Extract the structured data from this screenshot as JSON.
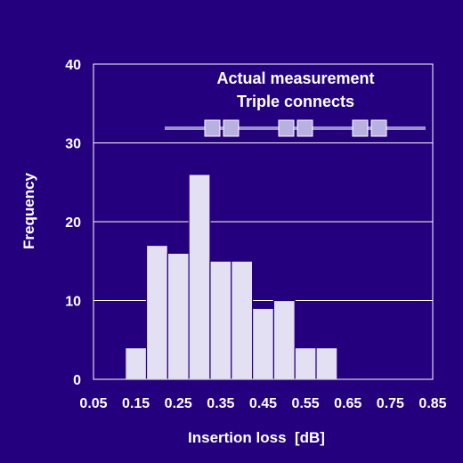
{
  "chart_data": {
    "type": "bar",
    "title": "",
    "xlabel": "Insertion loss  [dB]",
    "ylabel": "Frequency",
    "bin_width": 0.05,
    "bin_starts": [
      0.125,
      0.175,
      0.225,
      0.275,
      0.325,
      0.375,
      0.425,
      0.475,
      0.525,
      0.575
    ],
    "values": [
      4,
      17,
      16,
      26,
      15,
      15,
      9,
      10,
      4,
      4
    ],
    "xlim": [
      0.05,
      0.85
    ],
    "ylim": [
      0,
      40
    ],
    "x_ticks": [
      "0.05",
      "0.15",
      "0.25",
      "0.35",
      "0.45",
      "0.55",
      "0.65",
      "0.75",
      "0.85"
    ],
    "y_ticks": [
      "0",
      "10",
      "20",
      "30",
      "40"
    ],
    "grid": true,
    "colors": {
      "background": "#25007e",
      "bars": "#e4e0f3",
      "grid": "#ffffff",
      "text": "#ffffff",
      "connector_line": "#9b8fd3",
      "connector_squares": "#b9b0e2"
    },
    "annotation": {
      "lines": [
        "Actual measurement",
        "Triple connects"
      ],
      "icon": "connector-chain-icon"
    }
  }
}
